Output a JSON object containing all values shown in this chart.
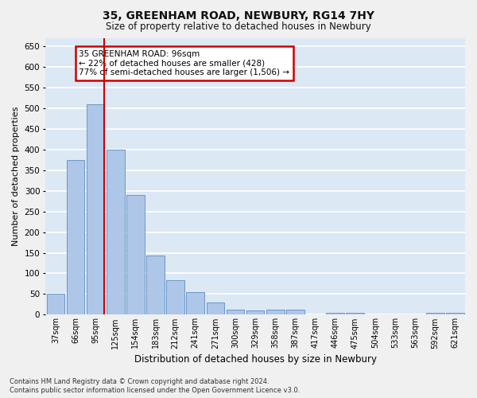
{
  "title": "35, GREENHAM ROAD, NEWBURY, RG14 7HY",
  "subtitle": "Size of property relative to detached houses in Newbury",
  "xlabel": "Distribution of detached houses by size in Newbury",
  "ylabel": "Number of detached properties",
  "categories": [
    "37sqm",
    "66sqm",
    "95sqm",
    "125sqm",
    "154sqm",
    "183sqm",
    "212sqm",
    "241sqm",
    "271sqm",
    "300sqm",
    "329sqm",
    "358sqm",
    "387sqm",
    "417sqm",
    "446sqm",
    "475sqm",
    "504sqm",
    "533sqm",
    "563sqm",
    "592sqm",
    "621sqm"
  ],
  "values": [
    50,
    375,
    510,
    400,
    290,
    143,
    83,
    55,
    30,
    12,
    10,
    12,
    12,
    0,
    5,
    5,
    0,
    0,
    0,
    5,
    5
  ],
  "bar_color": "#aec6e8",
  "bar_edge_color": "#5a8fc2",
  "marker_index": 2,
  "marker_color": "#cc0000",
  "annotation_text": "35 GREENHAM ROAD: 96sqm\n← 22% of detached houses are smaller (428)\n77% of semi-detached houses are larger (1,506) →",
  "annotation_box_color": "#ffffff",
  "annotation_box_edge_color": "#cc0000",
  "ylim": [
    0,
    670
  ],
  "yticks": [
    0,
    50,
    100,
    150,
    200,
    250,
    300,
    350,
    400,
    450,
    500,
    550,
    600,
    650
  ],
  "background_color": "#dde8f5",
  "grid_color": "#ffffff",
  "fig_background_color": "#f0f0f0",
  "footer_line1": "Contains HM Land Registry data © Crown copyright and database right 2024.",
  "footer_line2": "Contains public sector information licensed under the Open Government Licence v3.0."
}
